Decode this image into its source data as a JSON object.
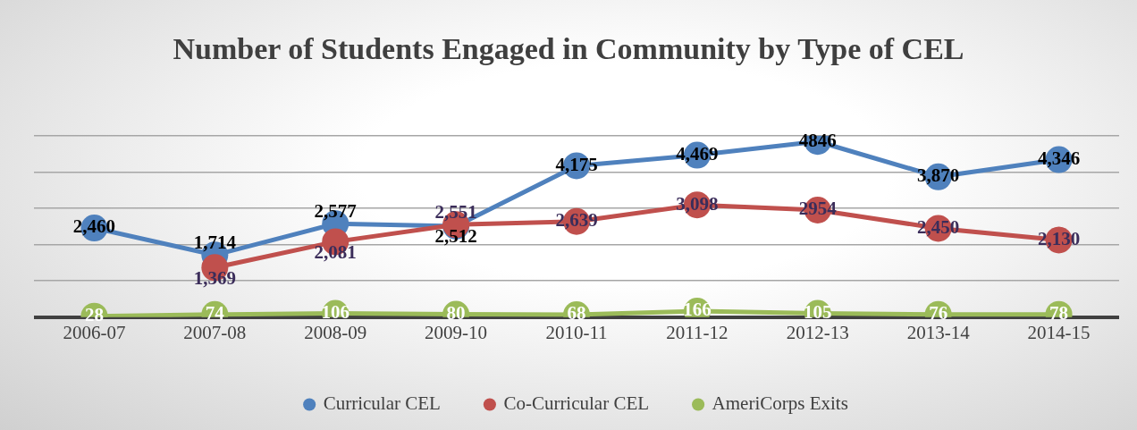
{
  "chart_data": {
    "type": "line",
    "title": "Number of Students Engaged in Community by Type of CEL",
    "categories": [
      "2006-07",
      "2007-08",
      "2008-09",
      "2009-10",
      "2010-11",
      "2011-12",
      "2012-13",
      "2013-14",
      "2014-15"
    ],
    "series": [
      {
        "name": "Curricular CEL",
        "color": "#4f81bd",
        "values": [
          2460,
          1714,
          2577,
          2512,
          4175,
          4469,
          4846,
          3870,
          4346
        ],
        "value_labels": [
          "2,460",
          "1,714",
          "2,577",
          "2,512",
          "4,175",
          "4,469",
          "4846",
          "3,870",
          "4,346"
        ]
      },
      {
        "name": "Co-Curricular CEL",
        "color": "#c0504d",
        "values": [
          null,
          1369,
          2081,
          2551,
          2639,
          3098,
          2954,
          2450,
          2130
        ],
        "value_labels": [
          null,
          "1,369",
          "2,081",
          "2,551",
          "2,639",
          "3,098",
          "2954",
          "2,450",
          "2,130"
        ]
      },
      {
        "name": "AmeriCorps Exits",
        "color": "#9bbb59",
        "values": [
          28,
          74,
          106,
          80,
          68,
          166,
          105,
          76,
          78
        ],
        "value_labels": [
          "28",
          "74",
          "106",
          "80",
          "68",
          "166",
          "105",
          "76",
          "78"
        ]
      }
    ],
    "ylim": [
      0,
      5000
    ],
    "yticks": [
      {
        "value": 0,
        "label": null
      },
      {
        "value": 1000,
        "label": null
      },
      {
        "value": 2000,
        "label": null
      },
      {
        "value": 3000,
        "label": null
      },
      {
        "value": 4000,
        "label": null
      },
      {
        "value": 5000,
        "label": null
      }
    ],
    "tick_labels": "x",
    "grid": "y",
    "legend": "bottom",
    "marker": "circle",
    "line_style": "solid"
  }
}
